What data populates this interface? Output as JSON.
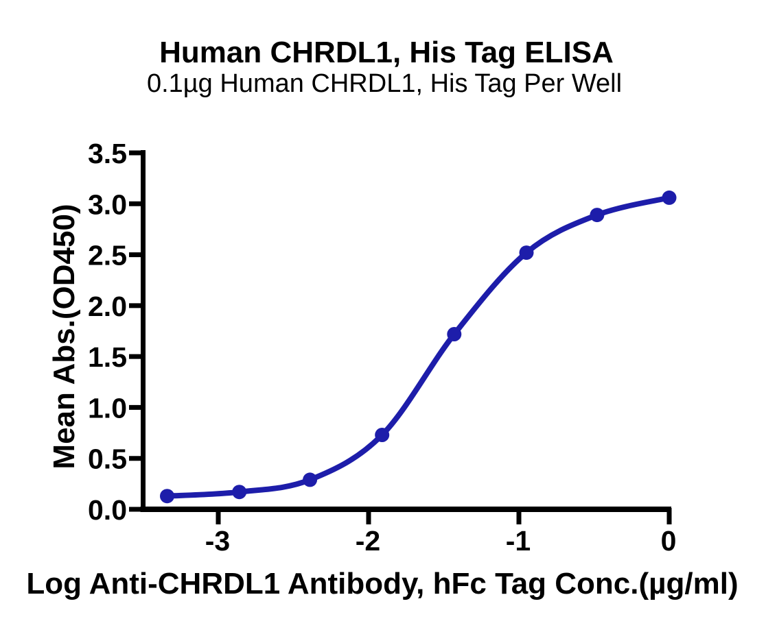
{
  "figure": {
    "background": "#ffffff",
    "text_color": "#000000",
    "accent_color": "#1d1daa"
  },
  "chart_data": {
    "type": "scatter",
    "title": "Human CHRDL1, His Tag ELISA",
    "subtitle": "0.1µg Human CHRDL1, His Tag Per Well",
    "xlabel": "Log Anti-CHRDL1 Antibody, hFc Tag Conc.(µg/ml)",
    "ylabel": "Mean Abs.(OD450)",
    "x": [
      -3.34,
      -2.86,
      -2.39,
      -1.91,
      -1.43,
      -0.95,
      -0.48,
      0
    ],
    "y": [
      0.13,
      0.17,
      0.29,
      0.73,
      1.72,
      2.52,
      2.89,
      3.06
    ],
    "curve_style": "smooth sigmoidal fit line through points",
    "x_ticks": [
      {
        "v": -3,
        "label": "-3"
      },
      {
        "v": -2,
        "label": "-2"
      },
      {
        "v": -1,
        "label": "-1"
      },
      {
        "v": 0,
        "label": "0"
      }
    ],
    "y_ticks": [
      {
        "v": 0.0,
        "label": "0.0"
      },
      {
        "v": 0.5,
        "label": "0.5"
      },
      {
        "v": 1.0,
        "label": "1.0"
      },
      {
        "v": 1.5,
        "label": "1.5"
      },
      {
        "v": 2.0,
        "label": "2.0"
      },
      {
        "v": 2.5,
        "label": "2.5"
      },
      {
        "v": 3.0,
        "label": "3.0"
      },
      {
        "v": 3.5,
        "label": "3.5"
      }
    ],
    "xlim": [
      -3.5,
      0.05
    ],
    "ylim": [
      0,
      3.5
    ],
    "grid": false,
    "legend": false,
    "marker_color": "#1d1daa",
    "line_color": "#1d1daa",
    "axis_color": "#000000"
  }
}
